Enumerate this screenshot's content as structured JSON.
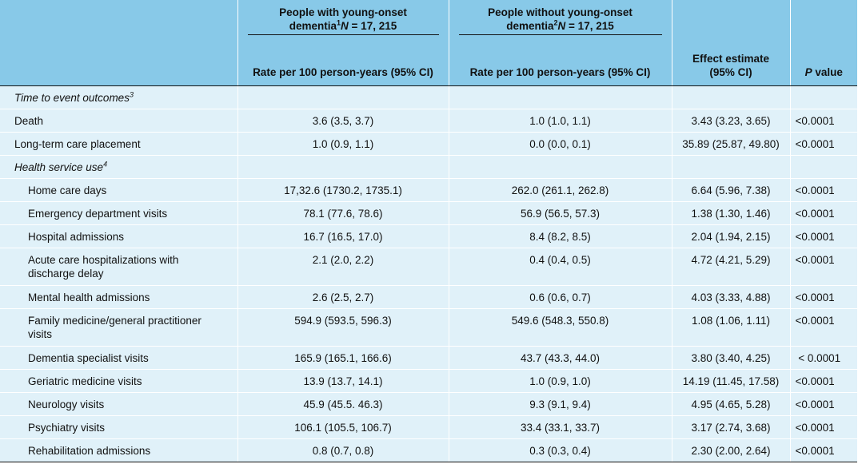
{
  "header": {
    "group1_line1": "People with young-onset",
    "group1_line2_pre": "dementia",
    "group1_sup": "1",
    "group1_n": "N",
    "group1_n_value": " = 17, 215",
    "group2_line1": "People without young-onset",
    "group2_line2_pre": "dementia",
    "group2_sup": "2",
    "group2_n": "N",
    "group2_n_value": " = 17, 215",
    "rate_label_1": "Rate per 100 person-years (95% CI)",
    "rate_label_2": "Rate per 100 person-years (95% CI)",
    "effect_line1": "Effect estimate",
    "effect_line2": "(95% CI)",
    "p_letter": "P",
    "p_rest": " value"
  },
  "sections": {
    "time_to_event": {
      "label": "Time to event outcomes",
      "sup": "3"
    },
    "health_service": {
      "label": "Health service use",
      "sup": "4"
    }
  },
  "rows": [
    {
      "name": "Death",
      "with": "3.6 (3.5, 3.7)",
      "without": "1.0 (1.0, 1.1)",
      "effect": "3.43 (3.23, 3.65)",
      "p": "<0.0001"
    },
    {
      "name": "Long-term care placement",
      "with": "1.0 (0.9, 1.1)",
      "without": "0.0 (0.0, 0.1)",
      "effect": "35.89 (25.87, 49.80)",
      "p": "<0.0001"
    },
    {
      "name": "Home care days",
      "with": "17,32.6 (1730.2, 1735.1)",
      "without": "262.0 (261.1, 262.8)",
      "effect": "6.64 (5.96, 7.38)",
      "p": "<0.0001"
    },
    {
      "name": "Emergency department visits",
      "with": "78.1 (77.6, 78.6)",
      "without": "56.9 (56.5, 57.3)",
      "effect": "1.38 (1.30, 1.46)",
      "p": "<0.0001"
    },
    {
      "name": "Hospital admissions",
      "with": "16.7 (16.5, 17.0)",
      "without": "8.4 (8.2, 8.5)",
      "effect": "2.04 (1.94, 2.15)",
      "p": "<0.0001"
    },
    {
      "name_line1": "Acute care hospitalizations with",
      "name_line2": "discharge delay",
      "with": "2.1 (2.0, 2.2)",
      "without": "0.4 (0.4, 0.5)",
      "effect": "4.72 (4.21, 5.29)",
      "p": "<0.0001"
    },
    {
      "name": "Mental health admissions",
      "with": "2.6 (2.5, 2.7)",
      "without": "0.6 (0.6, 0.7)",
      "effect": "4.03 (3.33, 4.88)",
      "p": "<0.0001"
    },
    {
      "name_line1": "Family medicine/general practitioner",
      "name_line2": "visits",
      "with": "594.9 (593.5, 596.3)",
      "without": "549.6 (548.3, 550.8)",
      "effect": "1.08 (1.06, 1.11)",
      "p": "<0.0001"
    },
    {
      "name": "Dementia specialist visits",
      "with": "165.9 (165.1, 166.6)",
      "without": "43.7 (43.3, 44.0)",
      "effect": "3.80 (3.40, 4.25)",
      "p": " < 0.0001"
    },
    {
      "name": "Geriatric medicine visits",
      "with": "13.9 (13.7, 14.1)",
      "without": "1.0 (0.9, 1.0)",
      "effect": "14.19 (11.45, 17.58)",
      "p": "<0.0001"
    },
    {
      "name": "Neurology visits",
      "with": "45.9 (45.5. 46.3)",
      "without": "9.3 (9.1, 9.4)",
      "effect": "4.95 (4.65, 5.28)",
      "p": "<0.0001"
    },
    {
      "name": "Psychiatry visits",
      "with": "106.1 (105.5, 106.7)",
      "without": "33.4 (33.1, 33.7)",
      "effect": "3.17 (2.74, 3.68)",
      "p": "<0.0001"
    },
    {
      "name": "Rehabilitation admissions",
      "with": "0.8 (0.7, 0.8)",
      "without": "0.3 (0.3, 0.4)",
      "effect": "2.30 (2.00, 2.64)",
      "p": "<0.0001"
    }
  ]
}
